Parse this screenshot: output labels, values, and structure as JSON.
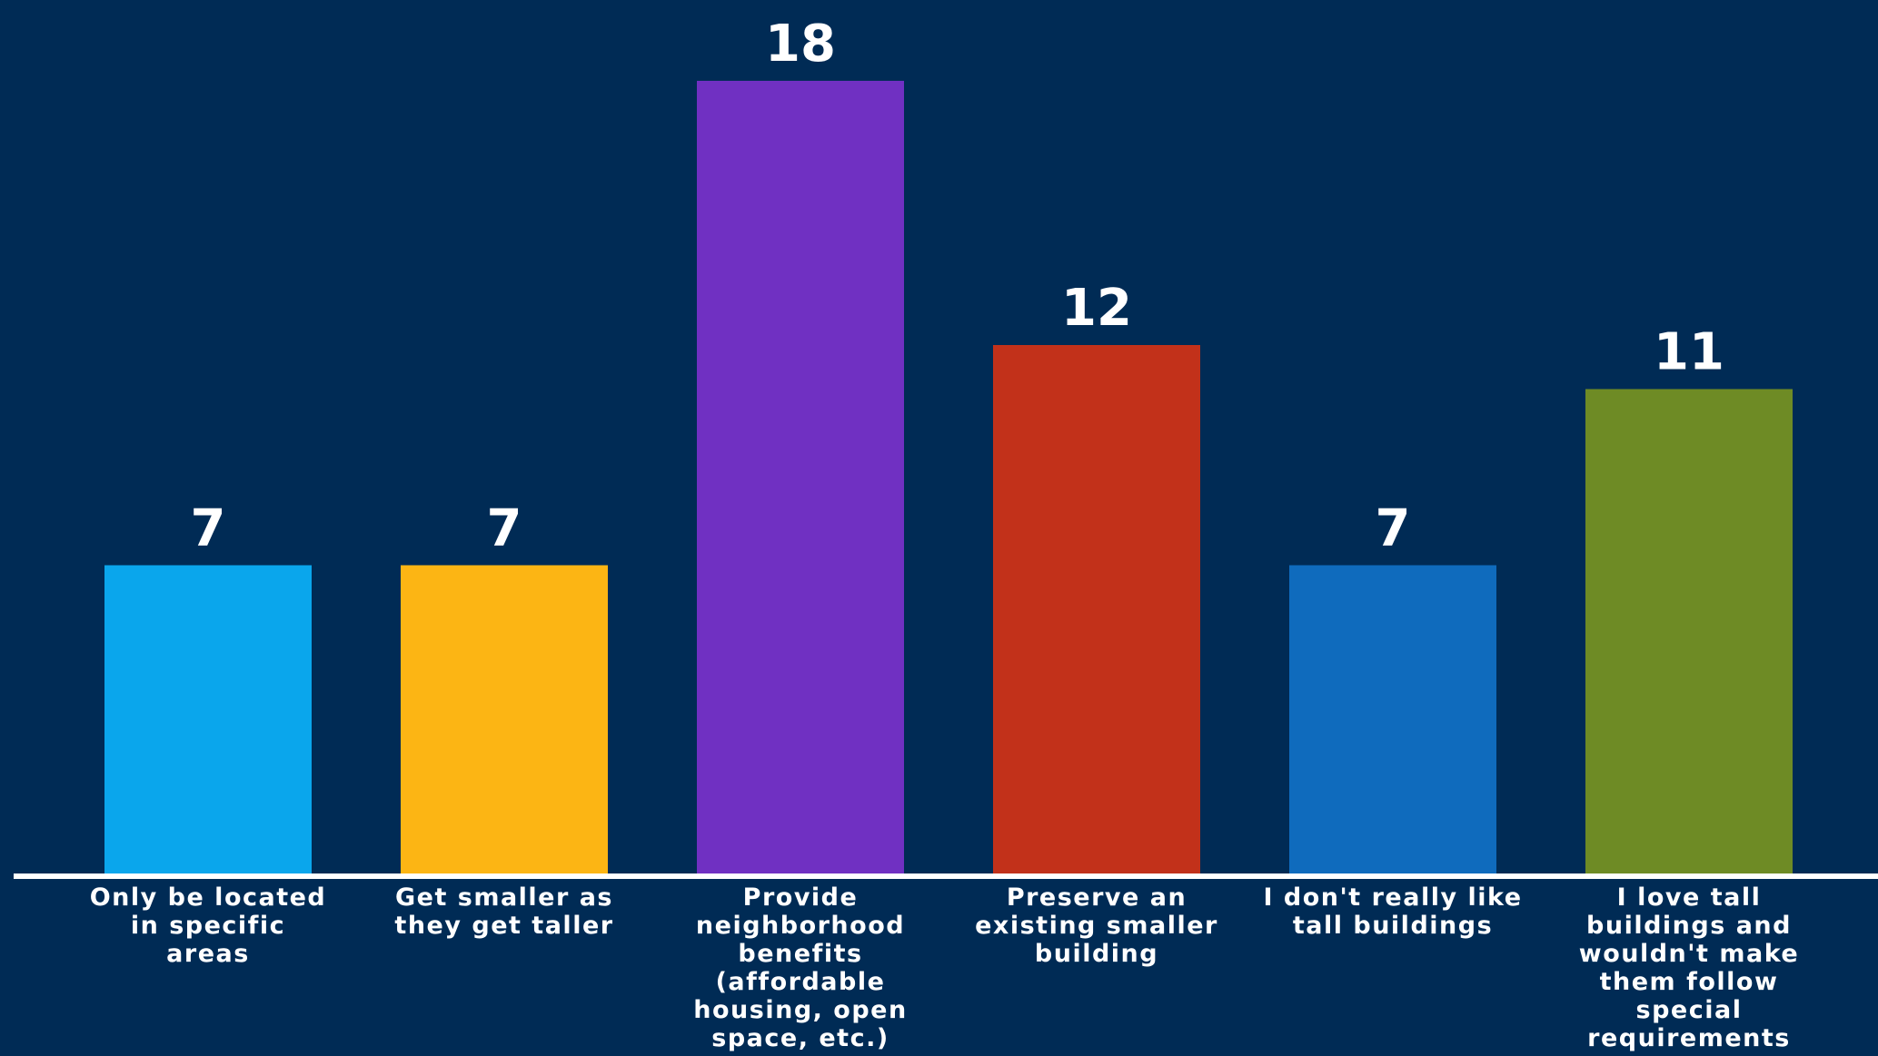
{
  "chart_data": {
    "type": "bar",
    "title": "",
    "xlabel": "",
    "ylabel": "",
    "ylim": [
      0,
      18
    ],
    "grid": false,
    "legend": "none",
    "categories": [
      "Only be located in specific areas",
      "Get smaller as they get taller",
      "Provide neighborhood benefits (affordable housing, open space, etc.)",
      "Preserve an existing smaller building",
      "I don't really like tall buildings",
      "I love tall buildings and wouldn't make them follow special requirements"
    ],
    "category_lines": [
      [
        "Only be located",
        "in specific",
        "areas"
      ],
      [
        "Get smaller as",
        "they get taller"
      ],
      [
        "Provide",
        "neighborhood",
        "benefits",
        "(affordable",
        "housing, open",
        "space, etc.)"
      ],
      [
        "Preserve an",
        "existing smaller",
        "building"
      ],
      [
        "I don't really like",
        "tall buildings"
      ],
      [
        "I love tall",
        "buildings and",
        "wouldn't make",
        "them follow",
        "special",
        "requirements"
      ]
    ],
    "values": [
      7,
      7,
      18,
      12,
      7,
      11
    ],
    "colors": [
      "#0aa6ec",
      "#fcb514",
      "#7030c2",
      "#c2311a",
      "#0f6bbd",
      "#6e8b25"
    ]
  },
  "theme": {
    "background": "#002b55",
    "axis_color": "#ffffff",
    "text_color": "#ffffff"
  }
}
